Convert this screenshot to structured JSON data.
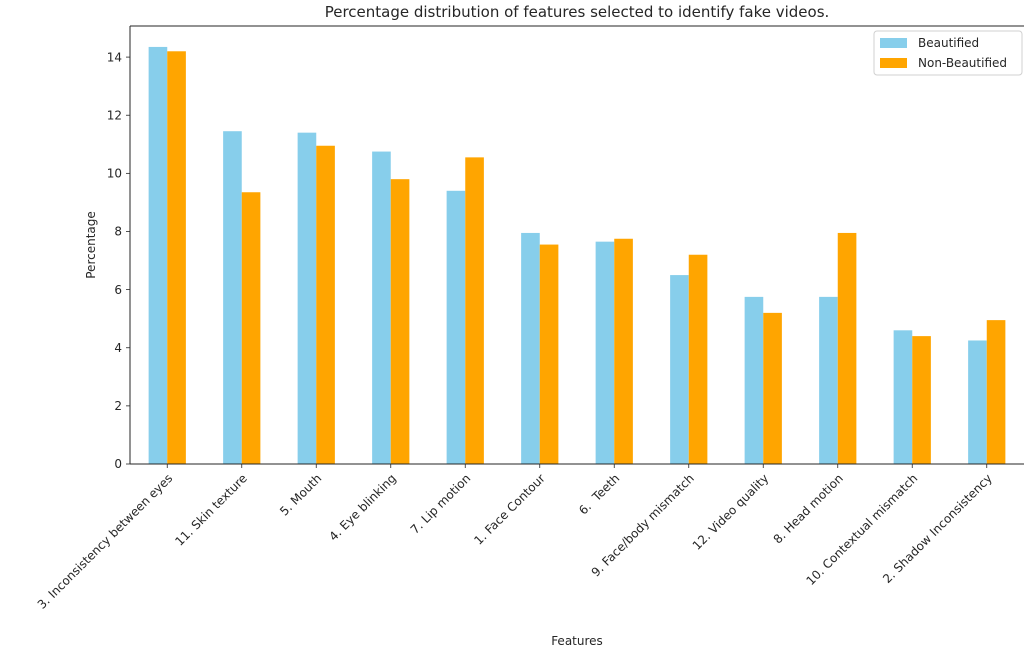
{
  "chart_data": {
    "type": "bar",
    "title": "Percentage distribution of features selected to identify fake videos.",
    "xlabel": "Features",
    "ylabel": "Percentage",
    "categories": [
      "3. Inconsistency between eyes",
      "11. Skin texture",
      "5. Mouth",
      "4. Eye blinking",
      "7. Lip motion",
      "1. Face Contour",
      "6.  Teeth",
      "9. Face/body mismatch",
      "12. Video quality",
      "8. Head motion",
      "10. Contextual mismatch",
      "2. Shadow Inconsistency"
    ],
    "series": [
      {
        "name": "Beautified",
        "color": "#87ceeb",
        "values": [
          14.35,
          11.45,
          11.4,
          10.75,
          9.4,
          7.95,
          7.65,
          6.5,
          5.75,
          5.75,
          4.6,
          4.25
        ]
      },
      {
        "name": "Non-Beautified",
        "color": "#ffa500",
        "values": [
          14.2,
          9.35,
          10.95,
          9.8,
          10.55,
          7.55,
          7.75,
          7.2,
          5.2,
          7.95,
          4.4,
          4.95
        ]
      }
    ],
    "yticks": [
      "0",
      "2",
      "4",
      "6",
      "8",
      "10",
      "12",
      "14"
    ],
    "ylim": [
      0,
      15.07
    ],
    "grid": false,
    "legend_position": "top-right"
  }
}
